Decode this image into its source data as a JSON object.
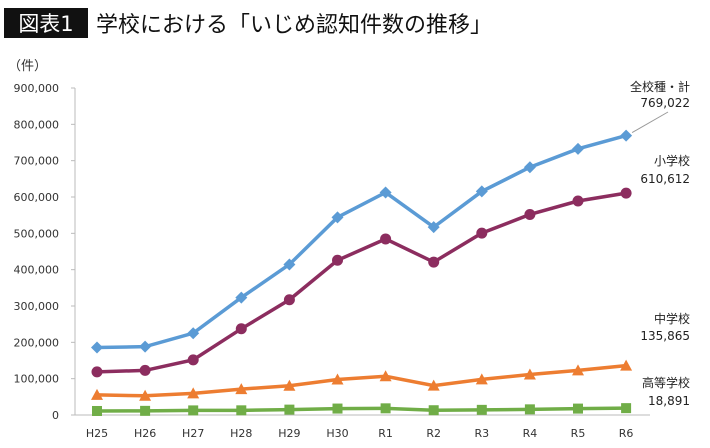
{
  "chart_data": {
    "type": "line",
    "title_badge": "図表1",
    "title": "学校における「いじめ認知件数の推移」",
    "ylabel": "（件）",
    "ylim": [
      0,
      900000
    ],
    "yticks": [
      "0",
      "100,000",
      "200,000",
      "300,000",
      "400,000",
      "500,000",
      "600,000",
      "700,000",
      "800,000",
      "900,000"
    ],
    "grid": false,
    "categories": [
      "H25",
      "H26",
      "H27",
      "H28",
      "H29",
      "H30",
      "R1",
      "R2",
      "R3",
      "R4",
      "R5",
      "R6"
    ],
    "series": [
      {
        "name": "全校種・計",
        "end_label": "769,022",
        "color": "#5b9bd5",
        "marker": "diamond",
        "values": [
          185803,
          188072,
          225132,
          323143,
          414378,
          543933,
          612496,
          517163,
          615351,
          681948,
          732568,
          769022
        ]
      },
      {
        "name": "小学校",
        "end_label": "610,612",
        "color": "#8c2d5f",
        "marker": "circle",
        "values": [
          118748,
          122734,
          151692,
          237256,
          317121,
          425844,
          484545,
          420897,
          500562,
          551944,
          588930,
          610612
        ]
      },
      {
        "name": "中学校",
        "end_label": "135,865",
        "color": "#ed7d31",
        "marker": "triangle",
        "values": [
          55248,
          52971,
          59502,
          71309,
          80424,
          97704,
          106524,
          80877,
          97937,
          111404,
          122703,
          135865
        ]
      },
      {
        "name": "高等学校",
        "end_label": "18,891",
        "color": "#70ad47",
        "marker": "square",
        "values": [
          11039,
          11404,
          12664,
          12874,
          14789,
          17709,
          18352,
          13126,
          14157,
          15568,
          17611,
          18891
        ]
      }
    ]
  }
}
